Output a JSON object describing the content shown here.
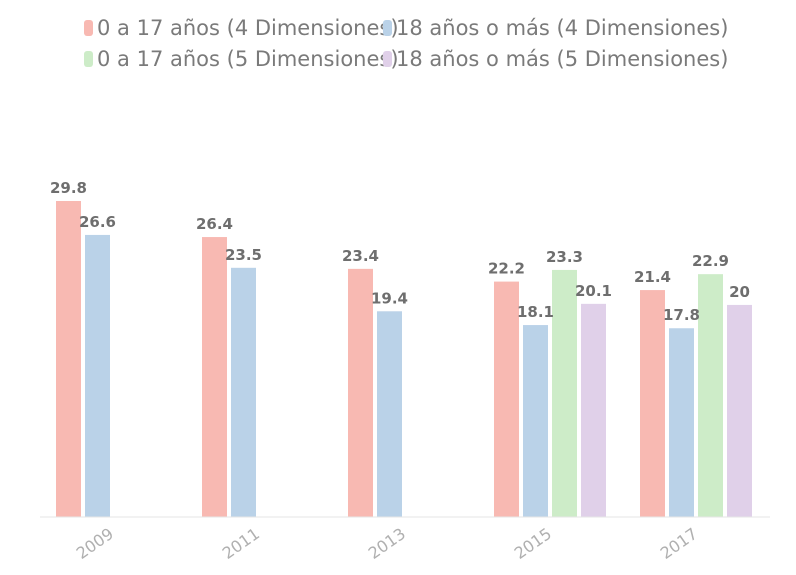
{
  "chart_data": {
    "type": "bar",
    "title": "",
    "xlabel": "",
    "ylabel": "",
    "ylim": [
      0,
      32
    ],
    "grid": false,
    "legend_position": "top",
    "categories": [
      "2009",
      "2011",
      "2013",
      "2015",
      "2017"
    ],
    "series": [
      {
        "name": "0 a 17 años (4 Dimensiones)",
        "color": "#f8b9b2",
        "values": [
          29.8,
          26.4,
          23.4,
          22.2,
          21.4
        ]
      },
      {
        "name": "18 años o más (4 Dimensiones)",
        "color": "#bad2e8",
        "values": [
          26.6,
          23.5,
          19.4,
          18.1,
          17.8
        ]
      },
      {
        "name": "0 a 17 años (5 Dimensiones)",
        "color": "#cdecc8",
        "values": [
          null,
          null,
          null,
          23.3,
          22.9
        ]
      },
      {
        "name": "18 años o más (5 Dimensiones)",
        "color": "#e0d0e9",
        "values": [
          null,
          null,
          null,
          20.1,
          20
        ]
      }
    ]
  },
  "colors": {
    "label_text": "#6e6e6e",
    "tick_text": "#b0b0b0",
    "legend_text": "#7a7a7a",
    "axis_line": "#e6e6e6"
  }
}
